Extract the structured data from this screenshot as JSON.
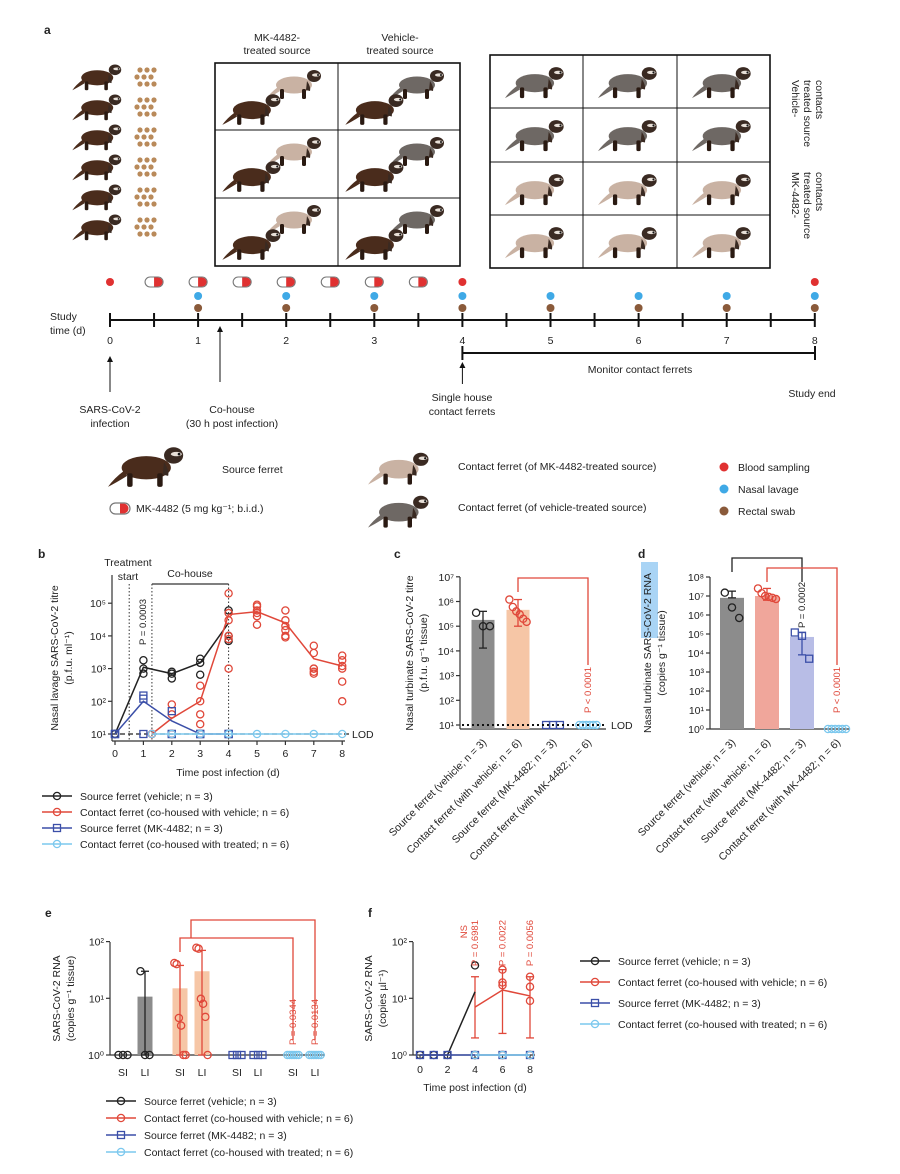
{
  "panel_a": {
    "label": "a",
    "mk_box_title": [
      "MK-4482-",
      "treated source"
    ],
    "vehicle_box_title": [
      "Vehicle-",
      "treated source"
    ],
    "right_labels": {
      "vehicle": [
        "Vehicle-",
        "treated source",
        "contacts"
      ],
      "mk": [
        "MK-4482-",
        "treated source",
        "contacts"
      ]
    },
    "timeline": {
      "label": [
        "Study",
        "time (d)"
      ],
      "ticks": [
        "0",
        "1",
        "2",
        "3",
        "4",
        "5",
        "6",
        "7",
        "8"
      ],
      "monitor": "Monitor contact ferrets",
      "pill_days": [
        0.5,
        1,
        1.5,
        2,
        2.5,
        3,
        3.5
      ],
      "blood_days": [
        0,
        4,
        8
      ],
      "nasal_days": [
        1,
        2,
        3,
        4,
        5,
        6,
        7,
        8
      ],
      "rectal_days": [
        1,
        2,
        3,
        4,
        5,
        6,
        7,
        8
      ],
      "events": {
        "infection": [
          "SARS-CoV-2",
          "infection"
        ],
        "cohouse": [
          "Co-house",
          "(30 h post infection)"
        ],
        "single_house": [
          "Single house",
          "contact ferrets"
        ],
        "study_end": "Study end"
      }
    },
    "legend": {
      "source_ferret": "Source ferret",
      "mk4482": "MK-4482 (5 mg kg⁻¹; b.i.d.)",
      "contact_mk": "Contact ferret (of MK-4482-treated source)",
      "contact_vehicle": "Contact ferret (of vehicle-treated source)",
      "blood": "Blood sampling",
      "nasal": "Nasal lavage",
      "rectal": "Rectal swab"
    },
    "colors": {
      "source_ferret": "#4a2c1c",
      "contact_mk": "#c9b2a3",
      "contact_vehicle": "#6e6864",
      "blood": "#e03131",
      "nasal": "#3fa9e6",
      "rectal": "#8a5a3a",
      "pellet": "#b98a5a"
    }
  },
  "chart_data": [
    {
      "panel": "b",
      "type": "line",
      "xlabel": "Time post infection (d)",
      "ylabel": [
        "Nasal lavage SARS-CoV-2 titre",
        "(p.f.u. ml⁻¹)"
      ],
      "yscale": "log",
      "ylim": [
        10,
        200000
      ],
      "xticks": [
        "0",
        "1",
        "2",
        "3",
        "4",
        "5",
        "6",
        "7",
        "8"
      ],
      "yticks": [
        {
          "v": 10,
          "t": "10¹"
        },
        {
          "v": 100,
          "t": "10²"
        },
        {
          "v": 1000,
          "t": "10³"
        },
        {
          "v": 10000,
          "t": "10⁴"
        },
        {
          "v": 100000,
          "t": "10⁵"
        }
      ],
      "lod_label": "LOD",
      "annotations": {
        "treatment": [
          "Treatment",
          "start"
        ],
        "cohouse": "Co-house",
        "p": "P = 0.0003"
      },
      "series": [
        {
          "name": "Source ferret (vehicle; n = 3)",
          "color": "#222222",
          "marker": "circle",
          "x": [
            0,
            1,
            2,
            3,
            4
          ],
          "mean": [
            10,
            1100,
            700,
            1500,
            25000
          ],
          "points": [
            [
              10,
              10,
              10
            ],
            [
              1800,
              1000,
              700
            ],
            [
              800,
              700,
              500
            ],
            [
              2000,
              1500,
              650
            ],
            [
              60000,
              10000,
              7000
            ]
          ]
        },
        {
          "name": "Contact ferret (co-housed with vehicle; n = 6)",
          "color": "#e0483a",
          "marker": "circle",
          "x": [
            1.3,
            2,
            3,
            4,
            5,
            6,
            7,
            8
          ],
          "mean": [
            10,
            30,
            100,
            45000,
            55000,
            25000,
            2000,
            1200
          ],
          "points": [
            [
              10,
              10,
              10,
              10,
              10,
              10
            ],
            [
              80,
              40,
              10,
              10,
              10,
              10
            ],
            [
              300,
              100,
              40,
              20,
              10,
              10
            ],
            [
              200000,
              50000,
              30000,
              10000,
              8000,
              1000
            ],
            [
              90000,
              80000,
              60000,
              50000,
              40000,
              22000
            ],
            [
              60000,
              30000,
              20000,
              15000,
              10000,
              9000
            ],
            [
              5000,
              3000,
              1000,
              1000,
              800,
              700
            ],
            [
              2500,
              1800,
              1200,
              1000,
              400,
              100
            ]
          ]
        },
        {
          "name": "Source ferret (MK-4482; n = 3)",
          "color": "#3b4fa8",
          "marker": "square",
          "x": [
            0,
            1,
            2,
            3,
            4
          ],
          "mean": [
            10,
            100,
            25,
            10,
            10
          ],
          "points": [
            [
              10,
              10,
              10
            ],
            [
              150,
              120,
              10
            ],
            [
              50,
              10,
              10
            ],
            [
              10,
              10,
              10
            ],
            [
              10,
              10,
              10
            ]
          ]
        },
        {
          "name": "Contact ferret (co-housed with treated; n = 6)",
          "color": "#7cc8ee",
          "marker": "circle",
          "x": [
            1.3,
            2,
            3,
            4,
            5,
            6,
            7,
            8
          ],
          "mean": [
            10,
            10,
            10,
            10,
            10,
            10,
            10,
            10
          ],
          "points": [
            [
              10
            ],
            [
              10
            ],
            [
              10
            ],
            [
              10
            ],
            [
              10
            ],
            [
              10
            ],
            [
              10
            ],
            [
              10
            ]
          ]
        }
      ]
    },
    {
      "panel": "c",
      "type": "bar",
      "ylabel": [
        "Nasal turbinate SARS-CoV-2 titre",
        "(p.f.u. g⁻¹ tissue)"
      ],
      "yscale": "log",
      "ylim": [
        10,
        10000000
      ],
      "yticks": [
        {
          "v": 10,
          "t": "10¹"
        },
        {
          "v": 100,
          "t": "10²"
        },
        {
          "v": 1000,
          "t": "10³"
        },
        {
          "v": 10000,
          "t": "10⁴"
        },
        {
          "v": 100000,
          "t": "10⁵"
        },
        {
          "v": 1000000,
          "t": "10⁶"
        },
        {
          "v": 10000000,
          "t": "10⁷"
        }
      ],
      "categories": [
        "Source ferret (vehicle; n = 3)",
        "Contact ferret (with vehicle; n = 6)",
        "Source ferret (MK-4482; n = 3)",
        "Contact ferret (with MK-4482; n = 6)"
      ],
      "values": [
        180000,
        460000,
        10,
        10
      ],
      "error": [
        [
          13000,
          400000
        ],
        [
          100000,
          1200000
        ],
        null,
        null
      ],
      "points": [
        [
          350000,
          100000,
          100000
        ],
        [
          1200000,
          600000,
          400000,
          300000,
          200000,
          150000
        ],
        [
          10,
          10,
          10
        ],
        [
          10,
          10,
          10,
          10,
          10,
          10
        ]
      ],
      "bar_colors": [
        "#8c8c8c",
        "#f6c6a6",
        "#aab0e0",
        "#a9dcf3"
      ],
      "point_colors": [
        "#222222",
        "#e0483a",
        "#3b4fa8",
        "#7cc8ee"
      ],
      "lod_label": "LOD",
      "comparisons": [
        {
          "from": 1,
          "to": 3,
          "p": "P < 0.0001",
          "color": "#e0483a"
        }
      ]
    },
    {
      "panel": "d",
      "type": "bar",
      "ylabel": [
        "Nasal turbinate SARS-CoV-2 RNA",
        "(copies g⁻¹ tissue)"
      ],
      "yscale": "log",
      "ylim": [
        1,
        100000000
      ],
      "yticks": [
        {
          "v": 1,
          "t": "10⁰"
        },
        {
          "v": 10,
          "t": "10¹"
        },
        {
          "v": 100,
          "t": "10²"
        },
        {
          "v": 1000,
          "t": "10³"
        },
        {
          "v": 10000,
          "t": "10⁴"
        },
        {
          "v": 100000,
          "t": "10⁵"
        },
        {
          "v": 1000000,
          "t": "10⁶"
        },
        {
          "v": 10000000,
          "t": "10⁷"
        },
        {
          "v": 100000000,
          "t": "10⁸"
        }
      ],
      "categories": [
        "Source ferret (vehicle; n = 3)",
        "Contact ferret (with vehicle; n = 6)",
        "Source ferret (MK-4482; n = 3)",
        "Contact ferret (with MK-4482; n = 6)"
      ],
      "values": [
        8000000,
        10000000,
        70000,
        1
      ],
      "error": [
        [
          null,
          18000000
        ],
        [
          6000000,
          25000000
        ],
        [
          8000,
          120000
        ],
        null
      ],
      "points": [
        [
          15000000,
          2500000,
          700000
        ],
        [
          25000000,
          14000000,
          10000000,
          9000000,
          8000000,
          7000000
        ],
        [
          120000,
          80000,
          5000
        ],
        [
          1,
          1,
          1,
          1,
          1,
          1
        ]
      ],
      "bar_colors": [
        "#8c8c8c",
        "#f0a69b",
        "#b8bde6",
        "#a9dcf3"
      ],
      "point_colors": [
        "#222222",
        "#e0483a",
        "#3b4fa8",
        "#7cc8ee"
      ],
      "comparisons": [
        {
          "from": 0,
          "to": 2,
          "p": "P = 0.0002",
          "color": "#222222"
        },
        {
          "from": 1,
          "to": 3,
          "p": "P < 0.0001",
          "color": "#e0483a"
        }
      ]
    },
    {
      "panel": "e",
      "type": "bar",
      "ylabel": [
        "SARS-CoV-2 RNA",
        "(copies g⁻¹ tissue)"
      ],
      "yscale": "log",
      "ylim": [
        1,
        100
      ],
      "yticks": [
        {
          "v": 1,
          "t": "10⁰"
        },
        {
          "v": 10,
          "t": "10¹"
        },
        {
          "v": 100,
          "t": "10²"
        }
      ],
      "categories": [
        "SI",
        "LI",
        "SI",
        "LI",
        "SI",
        "LI",
        "SI",
        "LI"
      ],
      "values": [
        1,
        10.7,
        15,
        30,
        1,
        1,
        1,
        1
      ],
      "error": [
        null,
        [
          1,
          30
        ],
        [
          1,
          38
        ],
        [
          1,
          70
        ],
        null,
        null,
        null,
        null
      ],
      "points": [
        [
          1,
          1,
          1
        ],
        [
          30,
          1,
          1
        ],
        [
          42,
          40,
          4.5,
          3.3,
          1,
          1
        ],
        [
          78,
          75,
          9.8,
          8,
          4.7,
          1
        ],
        [
          1,
          1,
          1
        ],
        [
          1,
          1,
          1
        ],
        [
          1,
          1,
          1,
          1,
          1,
          1
        ],
        [
          1,
          1,
          1,
          1,
          1,
          1
        ]
      ],
      "bar_colors": [
        "#8c8c8c",
        "#8c8c8c",
        "#f6c6a6",
        "#f6c6a6",
        "#aab0e0",
        "#aab0e0",
        "#a9dcf3",
        "#a9dcf3"
      ],
      "point_colors": [
        "#222222",
        "#222222",
        "#e0483a",
        "#e0483a",
        "#3b4fa8",
        "#3b4fa8",
        "#7cc8ee",
        "#7cc8ee"
      ],
      "comparisons": [
        {
          "from": 2,
          "to": 6,
          "p": "P = 0.0344",
          "color": "#e0483a"
        },
        {
          "from": 3,
          "to": 7,
          "p": "P = 0.0134",
          "color": "#e0483a"
        }
      ],
      "series": [
        {
          "name": "Source ferret (vehicle; n = 3)",
          "color": "#222222",
          "marker": "circle"
        },
        {
          "name": "Contact ferret (co-housed with vehicle; n = 6)",
          "color": "#e0483a",
          "marker": "circle"
        },
        {
          "name": "Source ferret (MK-4482; n = 3)",
          "color": "#3b4fa8",
          "marker": "square"
        },
        {
          "name": "Contact ferret (co-housed with treated; n = 6)",
          "color": "#7cc8ee",
          "marker": "circle"
        }
      ]
    },
    {
      "panel": "f",
      "type": "line",
      "xlabel": "Time post infection (d)",
      "ylabel": [
        "SARS-CoV-2 RNA",
        "(copies µl⁻¹)"
      ],
      "yscale": "log",
      "ylim": [
        1,
        100
      ],
      "xticks": [
        "0",
        "2",
        "4",
        "6",
        "8"
      ],
      "yticks": [
        {
          "v": 1,
          "t": "10⁰"
        },
        {
          "v": 10,
          "t": "10¹"
        },
        {
          "v": 100,
          "t": "10²"
        }
      ],
      "annotations": [
        {
          "x": 4,
          "lines": [
            "NS",
            "P = 0.6981"
          ]
        },
        {
          "x": 6,
          "lines": [
            "P = 0.0022"
          ]
        },
        {
          "x": 8,
          "lines": [
            "P = 0.0056"
          ]
        }
      ],
      "series": [
        {
          "name": "Source ferret (vehicle; n = 3)",
          "color": "#222222",
          "marker": "circle",
          "x": [
            0,
            1,
            2,
            4
          ],
          "mean": [
            1,
            1,
            1,
            13
          ],
          "points": [
            [
              1
            ],
            [
              1
            ],
            [
              1
            ],
            [
              38,
              1,
              1
            ]
          ]
        },
        {
          "name": "Contact ferret (co-housed with vehicle; n = 6)",
          "color": "#e0483a",
          "marker": "circle",
          "x": [
            4,
            6,
            8
          ],
          "mean": [
            7,
            14,
            11
          ],
          "points": [
            [
              1
            ],
            [
              32,
              19,
              17,
              1,
              1,
              1
            ],
            [
              24,
              16,
              9,
              1,
              1,
              1
            ]
          ]
        },
        {
          "name": "Source ferret (MK-4482; n = 3)",
          "color": "#3b4fa8",
          "marker": "square",
          "x": [
            0,
            1,
            2,
            4,
            6,
            8
          ],
          "mean": [
            1,
            1,
            1,
            1,
            1,
            1
          ],
          "points": [
            [
              1
            ],
            [
              1
            ],
            [
              1
            ],
            [
              1
            ],
            [
              1
            ],
            [
              1
            ]
          ]
        },
        {
          "name": "Contact ferret (co-housed with treated; n = 6)",
          "color": "#7cc8ee",
          "marker": "circle",
          "x": [
            4,
            6,
            8
          ],
          "mean": [
            1,
            1,
            1
          ],
          "points": [
            [
              1
            ],
            [
              1
            ],
            [
              1
            ]
          ]
        }
      ]
    }
  ]
}
